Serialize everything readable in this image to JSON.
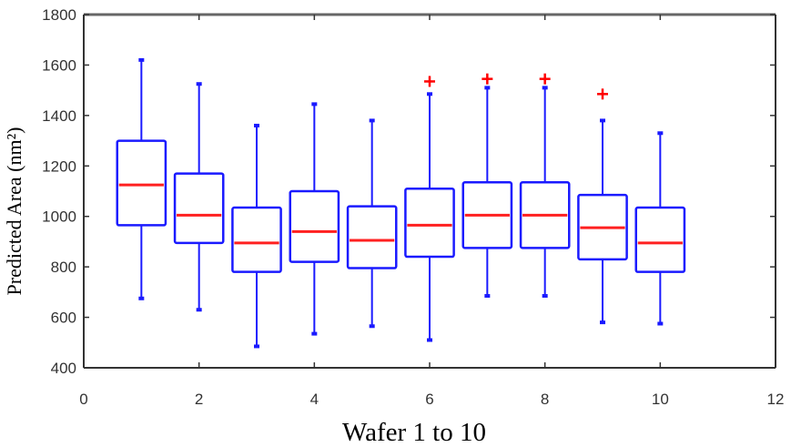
{
  "chart_data": {
    "type": "boxplot",
    "title": "",
    "xlabel": "Wafer 1 to 10",
    "ylabel": "Predicted Area (nm²)",
    "xlim": [
      0,
      12
    ],
    "ylim": [
      400,
      1800
    ],
    "x_ticks": [
      "0",
      "2",
      "4",
      "6",
      "8",
      "10",
      "12"
    ],
    "y_ticks": [
      "400",
      "600",
      "800",
      "1000",
      "1200",
      "1400",
      "1600",
      "1800"
    ],
    "grid": false,
    "colors": {
      "box": "#1a1aff",
      "median": "#ff2020",
      "outlier": "#ff0000",
      "axis": "#333333"
    },
    "boxes": [
      {
        "x": 1,
        "min": 675,
        "q1": 965,
        "median": 1125,
        "q3": 1300,
        "max": 1620,
        "outliers": []
      },
      {
        "x": 2,
        "min": 630,
        "q1": 895,
        "median": 1005,
        "q3": 1170,
        "max": 1525,
        "outliers": []
      },
      {
        "x": 3,
        "min": 485,
        "q1": 780,
        "median": 895,
        "q3": 1035,
        "max": 1360,
        "outliers": []
      },
      {
        "x": 4,
        "min": 535,
        "q1": 820,
        "median": 940,
        "q3": 1100,
        "max": 1445,
        "outliers": []
      },
      {
        "x": 5,
        "min": 565,
        "q1": 795,
        "median": 905,
        "q3": 1040,
        "max": 1380,
        "outliers": []
      },
      {
        "x": 6,
        "min": 510,
        "q1": 840,
        "median": 965,
        "q3": 1110,
        "max": 1485,
        "outliers": [
          1535
        ]
      },
      {
        "x": 7,
        "min": 685,
        "q1": 875,
        "median": 1005,
        "q3": 1135,
        "max": 1510,
        "outliers": [
          1545
        ]
      },
      {
        "x": 8,
        "min": 685,
        "q1": 875,
        "median": 1005,
        "q3": 1135,
        "max": 1510,
        "outliers": [
          1545
        ]
      },
      {
        "x": 9,
        "min": 580,
        "q1": 830,
        "median": 955,
        "q3": 1085,
        "max": 1380,
        "outliers": [
          1485
        ]
      },
      {
        "x": 10,
        "min": 575,
        "q1": 780,
        "median": 895,
        "q3": 1035,
        "max": 1330,
        "outliers": []
      }
    ]
  }
}
